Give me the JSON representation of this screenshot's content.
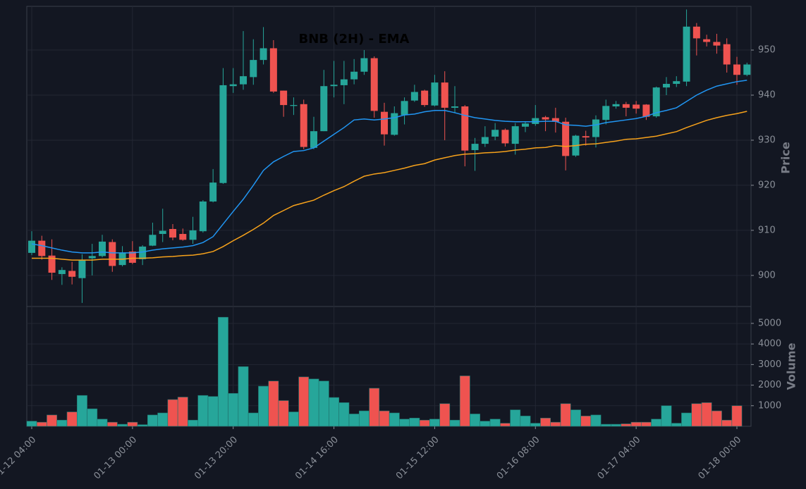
{
  "chart_data": [
    {
      "type": "candlestick",
      "title": "BNB (2H) - EMA",
      "ylabel": "Price",
      "categories": [
        "01-12 04:00",
        null,
        null,
        null,
        null,
        null,
        null,
        null,
        null,
        null,
        "01-13 00:00",
        null,
        null,
        null,
        null,
        null,
        null,
        null,
        null,
        null,
        "01-13 20:00",
        null,
        null,
        null,
        null,
        null,
        null,
        null,
        null,
        null,
        "01-14 16:00",
        null,
        null,
        null,
        null,
        null,
        null,
        null,
        null,
        null,
        "01-15 12:00",
        null,
        null,
        null,
        null,
        null,
        null,
        null,
        null,
        null,
        "01-16 08:00",
        null,
        null,
        null,
        null,
        null,
        null,
        null,
        null,
        null,
        "01-17 04:00",
        null,
        null,
        null,
        null,
        null,
        null,
        null,
        null,
        null,
        "01-18 00:00",
        null
      ],
      "open": [
        905,
        907.7,
        904.4,
        900.3,
        901,
        899.4,
        903.8,
        904.3,
        907.4,
        902.3,
        905.3,
        903.6,
        906.6,
        909.2,
        910.3,
        909.2,
        907.9,
        909.8,
        916.4,
        920.5,
        942,
        942.4,
        944,
        947.8,
        950.4,
        941,
        937.6,
        938,
        928.3,
        932,
        942,
        942.2,
        943.5,
        945.2,
        948.2,
        936.3,
        931.2,
        935.6,
        938.8,
        941,
        937.7,
        942.8,
        937.2,
        937.5,
        927.8,
        929.2,
        930.8,
        932.3,
        929.2,
        933,
        933.6,
        935.1,
        934.9,
        934.1,
        926.6,
        930.9,
        930.7,
        934.5,
        937.5,
        938,
        937.9,
        937.9,
        935.3,
        941.7,
        942.5,
        943,
        955.2,
        952.4,
        951.8,
        951.3,
        946.8,
        944.5
      ],
      "high": [
        909.8,
        908.8,
        908,
        901.8,
        903,
        904.7,
        907,
        909,
        908,
        906.5,
        907.6,
        906.7,
        911.7,
        914.8,
        911.4,
        910.4,
        913,
        916.7,
        923.6,
        946,
        946,
        954.2,
        952.4,
        955.1,
        952.2,
        941,
        939.5,
        939,
        935.2,
        945.6,
        947.6,
        947.6,
        948,
        950,
        948.6,
        938.3,
        937.5,
        939.5,
        942.3,
        941.2,
        944.5,
        945.3,
        942,
        937.8,
        930.5,
        933.1,
        933.8,
        932.6,
        933.8,
        934.2,
        937.8,
        935.4,
        937.2,
        935,
        931.2,
        932.1,
        935.5,
        939,
        938.7,
        938.5,
        938.7,
        938,
        941.9,
        944,
        944.2,
        959,
        956,
        953.4,
        953.6,
        952.6,
        948.5,
        947.2
      ],
      "low": [
        904.5,
        903.5,
        899,
        897.9,
        898,
        893.9,
        900,
        904,
        900.8,
        902,
        902.5,
        902.3,
        906.5,
        907.4,
        907.8,
        907.7,
        907,
        909.5,
        916.2,
        920.3,
        940.5,
        941.2,
        942.3,
        946.8,
        940.5,
        935.2,
        935.6,
        928,
        928,
        932,
        939.5,
        938,
        942.4,
        944.5,
        935,
        928.8,
        931,
        933.5,
        938.5,
        937.4,
        937.5,
        930,
        936,
        924.2,
        923.2,
        928.5,
        930,
        928.6,
        926.8,
        931.8,
        933.2,
        932,
        931.7,
        923.3,
        926.3,
        928.8,
        928.4,
        933.5,
        937,
        935.3,
        935.9,
        934.5,
        935,
        940,
        941.8,
        942,
        948.8,
        950.8,
        949.2,
        945,
        942.3,
        944.2
      ],
      "close": [
        907.7,
        904.3,
        900.6,
        901.2,
        899.7,
        903.5,
        904.3,
        907.5,
        902.1,
        905,
        902.8,
        906.4,
        909,
        909.9,
        908.4,
        907.9,
        910,
        916.4,
        920.6,
        942.2,
        942.4,
        944.2,
        947.8,
        950.4,
        940.8,
        937.8,
        937.8,
        928.5,
        932,
        942,
        942.3,
        943.5,
        945.2,
        948.2,
        936.5,
        931.3,
        936,
        938.7,
        940.7,
        937.8,
        942.8,
        937.2,
        937.5,
        927.7,
        929.2,
        930.7,
        932.3,
        929.3,
        933.1,
        933.7,
        934.9,
        934.6,
        934.1,
        926.5,
        931,
        930.6,
        934.6,
        937.6,
        938,
        937.2,
        937,
        935.2,
        941.7,
        942.5,
        943.1,
        955.2,
        952.6,
        951.8,
        951,
        946.8,
        944.5,
        946.8
      ],
      "up_color": "#26a69a",
      "down_color": "#ef5350",
      "series": [
        {
          "color": "#2196f3",
          "values": [
            907.0,
            906.6,
            906.1,
            905.6,
            905.2,
            905.0,
            905.0,
            905.2,
            905.0,
            905.0,
            905.0,
            905.2,
            905.6,
            905.9,
            906.1,
            906.3,
            906.6,
            907.3,
            908.6,
            911.4,
            914.2,
            916.9,
            920.0,
            923.3,
            925.2,
            926.4,
            927.5,
            927.7,
            928.3,
            929.8,
            931.3,
            932.8,
            934.5,
            934.7,
            934.5,
            934.7,
            935.0,
            935.6,
            935.8,
            936.3,
            936.6,
            936.6,
            936.1,
            935.5,
            935.0,
            934.7,
            934.4,
            934.2,
            934.1,
            934.1,
            934.1,
            934.2,
            934.2,
            933.4,
            933.3,
            933.1,
            933.4,
            933.9,
            934.2,
            934.5,
            934.8,
            935.3,
            936.1,
            936.6,
            937.2,
            938.6,
            940.0,
            941.1,
            942.0,
            942.5,
            943.0,
            943.3
          ]
        },
        {
          "color": "#f7a21b",
          "values": [
            903.8,
            903.8,
            903.8,
            903.6,
            903.4,
            903.4,
            903.4,
            903.6,
            903.6,
            903.6,
            903.8,
            903.8,
            903.9,
            904.1,
            904.2,
            904.4,
            904.5,
            904.8,
            905.3,
            906.4,
            907.7,
            908.9,
            910.2,
            911.6,
            913.3,
            914.4,
            915.5,
            916.1,
            916.7,
            917.8,
            918.8,
            919.7,
            920.9,
            922.0,
            922.5,
            922.8,
            923.3,
            923.8,
            924.4,
            924.8,
            925.6,
            926.1,
            926.6,
            926.9,
            927.0,
            927.2,
            927.3,
            927.5,
            927.8,
            928.0,
            928.3,
            928.4,
            928.8,
            928.6,
            928.8,
            929.1,
            929.2,
            929.5,
            929.8,
            930.2,
            930.3,
            930.6,
            930.9,
            931.4,
            931.9,
            932.8,
            933.6,
            934.4,
            935.0,
            935.5,
            935.9,
            936.4
          ]
        }
      ],
      "ylim": [
        893.1,
        959.7
      ],
      "yticks": [
        900,
        910,
        920,
        930,
        940,
        950
      ],
      "grid": true
    },
    {
      "type": "bar",
      "ylabel": "Volume",
      "values": [
        250,
        200,
        550,
        300,
        700,
        1500,
        850,
        350,
        200,
        100,
        200,
        80,
        550,
        650,
        1300,
        1420,
        300,
        1500,
        1450,
        5300,
        1600,
        2900,
        650,
        1950,
        2200,
        1250,
        700,
        2400,
        2300,
        2200,
        1400,
        1150,
        600,
        750,
        1850,
        750,
        650,
        350,
        400,
        300,
        350,
        1100,
        300,
        2450,
        600,
        250,
        350,
        150,
        800,
        500,
        150,
        400,
        200,
        1100,
        800,
        500,
        550,
        100,
        100,
        120,
        200,
        200,
        350,
        1000,
        150,
        650,
        1100,
        1150,
        750,
        300,
        1000,
        null
      ],
      "ylim": [
        0,
        5820
      ],
      "yticks": [
        1000,
        2000,
        3000,
        4000,
        5000
      ],
      "grid": true
    }
  ]
}
